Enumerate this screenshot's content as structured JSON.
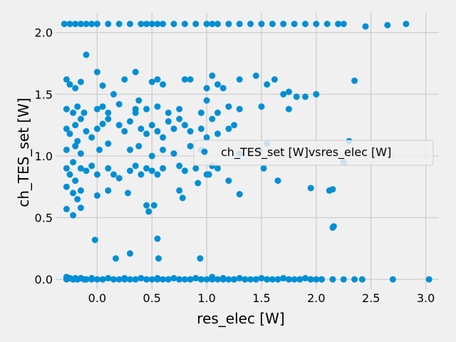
{
  "chart_data": {
    "type": "scatter",
    "xlabel": "res_elec [W]",
    "ylabel": "ch_TES_set [W]",
    "xlim": [
      -0.38,
      3.12
    ],
    "ylim": [
      -0.08,
      2.16
    ],
    "xticks": [
      0.0,
      0.5,
      1.0,
      1.5,
      2.0,
      2.5,
      3.0
    ],
    "xtick_labels": [
      "0.0",
      "0.5",
      "1.0",
      "1.5",
      "2.0",
      "2.5",
      "3.0"
    ],
    "yticks": [
      0.0,
      0.5,
      1.0,
      1.5,
      2.0
    ],
    "ytick_labels": [
      "0.0",
      "0.5",
      "1.0",
      "1.5",
      "2.0"
    ],
    "grid": true,
    "legend_position": "center-right",
    "series": [
      {
        "name": "ch_TES_set [W]vsres_elec [W]",
        "color": "#008fd5",
        "x": [
          -0.3,
          -0.25,
          -0.2,
          -0.15,
          -0.1,
          -0.05,
          0.0,
          0.1,
          0.2,
          0.3,
          0.4,
          0.45,
          0.5,
          0.55,
          0.6,
          0.7,
          0.8,
          0.9,
          1.0,
          1.05,
          1.1,
          1.2,
          1.3,
          1.4,
          1.5,
          1.6,
          1.7,
          1.8,
          1.9,
          2.0,
          2.1,
          2.2,
          2.25,
          2.45,
          2.65,
          2.82,
          -0.28,
          -0.22,
          -0.18,
          -0.12,
          -0.05,
          0.05,
          0.15,
          0.25,
          0.35,
          0.45,
          0.55,
          0.65,
          0.75,
          0.85,
          0.95,
          1.05,
          1.15,
          1.25,
          1.35,
          1.45,
          1.55,
          1.65,
          1.75,
          1.85,
          1.95,
          2.05,
          2.15,
          2.25,
          2.35,
          2.42,
          2.7,
          3.03,
          -0.28,
          -0.25,
          -0.22,
          -0.2,
          -0.18,
          -0.15,
          -0.12,
          -0.1,
          -0.05,
          0.0,
          0.05,
          0.1,
          0.15,
          0.2,
          0.25,
          0.3,
          0.35,
          0.4,
          0.45,
          0.5,
          0.55,
          0.6,
          0.65,
          0.7,
          0.75,
          0.8,
          0.85,
          0.9,
          0.95,
          1.0,
          1.05,
          1.1,
          1.15,
          1.2,
          1.25,
          1.3,
          1.35,
          1.4,
          1.45,
          1.5,
          1.55,
          1.6,
          1.65,
          1.7,
          1.75,
          1.8,
          1.85,
          1.9,
          1.95,
          2.0,
          2.05,
          -0.28,
          -0.25,
          -0.2,
          -0.18,
          -0.15,
          -0.1,
          -0.05,
          0.0,
          0.05,
          0.1,
          0.2,
          0.25,
          0.3,
          0.35,
          0.4,
          0.45,
          0.5,
          0.55,
          0.6,
          0.65,
          0.7,
          0.75,
          0.8,
          0.85,
          0.95,
          1.0,
          1.05,
          1.1,
          1.2,
          1.25,
          -0.28,
          -0.25,
          -0.22,
          -0.2,
          -0.15,
          -0.1,
          -0.05,
          0.0,
          0.1,
          0.15,
          0.2,
          0.3,
          0.35,
          0.4,
          0.45,
          0.5,
          0.55,
          0.6,
          0.75,
          0.8,
          0.9,
          1.0,
          1.05,
          1.1,
          -0.28,
          -0.25,
          -0.2,
          -0.15,
          -0.1,
          0.0,
          0.05,
          0.15,
          0.25,
          0.35,
          0.5,
          0.55,
          0.6,
          0.8,
          0.85,
          1.0,
          1.05,
          1.1,
          1.15,
          1.3,
          1.45,
          1.55,
          1.62,
          1.7,
          1.75,
          1.82,
          1.9,
          2.0,
          -0.28,
          -0.22,
          -0.18,
          -0.12,
          0.0,
          0.05,
          0.1,
          0.2,
          0.35,
          0.38,
          0.45,
          0.55,
          0.65,
          0.75,
          0.95,
          1.0,
          1.1,
          1.2,
          1.3,
          1.5,
          1.75,
          2.35,
          -0.28,
          -0.2,
          -0.15,
          0.02,
          0.1,
          0.3,
          0.38,
          0.5,
          0.6,
          0.7,
          0.85,
          0.95,
          1.3,
          1.48,
          1.55,
          -0.28,
          -0.22,
          -0.18,
          -0.15,
          0.0,
          0.1,
          0.28,
          0.45,
          0.47,
          0.52,
          0.75,
          0.78,
          0.92,
          1.02,
          1.2,
          1.3,
          1.52,
          1.65,
          1.95,
          2.12,
          2.15,
          2.15,
          2.16,
          2.25,
          2.3,
          -0.28,
          -0.22,
          -0.15,
          -0.02,
          0.17,
          0.3,
          0.55,
          0.56,
          0.94
        ],
        "y": [
          2.07,
          2.07,
          2.07,
          2.07,
          2.07,
          2.07,
          2.07,
          2.07,
          2.07,
          2.07,
          2.07,
          2.07,
          2.07,
          2.07,
          2.07,
          2.07,
          2.07,
          2.07,
          2.07,
          2.07,
          2.07,
          2.07,
          2.07,
          2.07,
          2.07,
          2.07,
          2.07,
          2.07,
          2.07,
          2.07,
          2.07,
          2.07,
          2.07,
          2.05,
          2.06,
          2.07,
          0.0,
          0.0,
          0.0,
          0.0,
          0.0,
          0.0,
          0.0,
          0.0,
          0.0,
          0.0,
          0.0,
          0.0,
          0.0,
          0.0,
          0.0,
          0.0,
          0.0,
          0.0,
          0.0,
          0.0,
          0.0,
          0.0,
          0.0,
          0.0,
          0.0,
          0.0,
          0.0,
          0.0,
          0.0,
          0.0,
          0.0,
          0.0,
          0.02,
          0.01,
          0.0,
          0.01,
          0.0,
          0.01,
          0.0,
          0.0,
          0.01,
          0.0,
          0.0,
          0.01,
          0.0,
          0.0,
          0.01,
          0.0,
          0.0,
          0.01,
          0.0,
          0.0,
          0.01,
          0.0,
          0.0,
          0.01,
          0.0,
          0.0,
          0.0,
          0.01,
          0.0,
          0.0,
          0.02,
          0.0,
          0.01,
          0.0,
          0.0,
          0.01,
          0.0,
          0.0,
          0.0,
          0.01,
          0.0,
          0.0,
          0.0,
          0.01,
          0.0,
          0.0,
          0.0,
          0.01,
          0.0,
          0.0,
          0.0,
          1.22,
          1.18,
          1.25,
          1.12,
          1.3,
          1.2,
          1.15,
          1.22,
          1.26,
          1.3,
          1.25,
          1.2,
          1.28,
          1.35,
          1.22,
          1.18,
          1.25,
          1.2,
          1.15,
          1.28,
          1.22,
          1.3,
          1.25,
          1.2,
          1.22,
          1.15,
          1.3,
          1.18,
          1.22,
          1.25,
          0.9,
          0.85,
          0.95,
          0.8,
          0.9,
          0.88,
          0.92,
          0.85,
          0.9,
          0.85,
          0.82,
          0.88,
          0.92,
          0.85,
          0.9,
          0.88,
          0.85,
          0.9,
          0.92,
          0.88,
          0.9,
          0.85,
          0.92,
          0.9,
          1.62,
          1.58,
          1.55,
          1.6,
          1.82,
          1.68,
          1.57,
          1.5,
          1.62,
          1.68,
          1.6,
          1.62,
          1.58,
          1.62,
          1.62,
          1.55,
          1.65,
          1.58,
          1.55,
          1.62,
          1.65,
          1.58,
          1.62,
          1.5,
          1.52,
          1.48,
          1.48,
          1.5,
          1.38,
          1.35,
          1.4,
          1.35,
          1.38,
          1.4,
          1.35,
          1.42,
          1.38,
          1.45,
          1.38,
          1.4,
          1.35,
          1.38,
          1.35,
          1.45,
          1.35,
          1.4,
          1.38,
          1.4,
          1.38,
          1.61,
          1.05,
          1.08,
          1.02,
          1.05,
          1.1,
          1.05,
          1.08,
          1.0,
          1.05,
          1.02,
          1.08,
          1.05,
          1.02,
          1.05,
          1.1,
          0.75,
          0.7,
          0.65,
          0.72,
          0.68,
          0.72,
          0.7,
          0.6,
          0.55,
          0.6,
          0.72,
          0.66,
          0.78,
          0.85,
          0.8,
          0.69,
          0.9,
          0.8,
          0.74,
          0.72,
          0.73,
          0.42,
          0.43,
          0.95,
          1.12,
          0.57,
          0.52,
          0.58,
          0.32,
          0.17,
          0.21,
          0.33,
          0.17,
          0.17
        ]
      }
    ]
  }
}
